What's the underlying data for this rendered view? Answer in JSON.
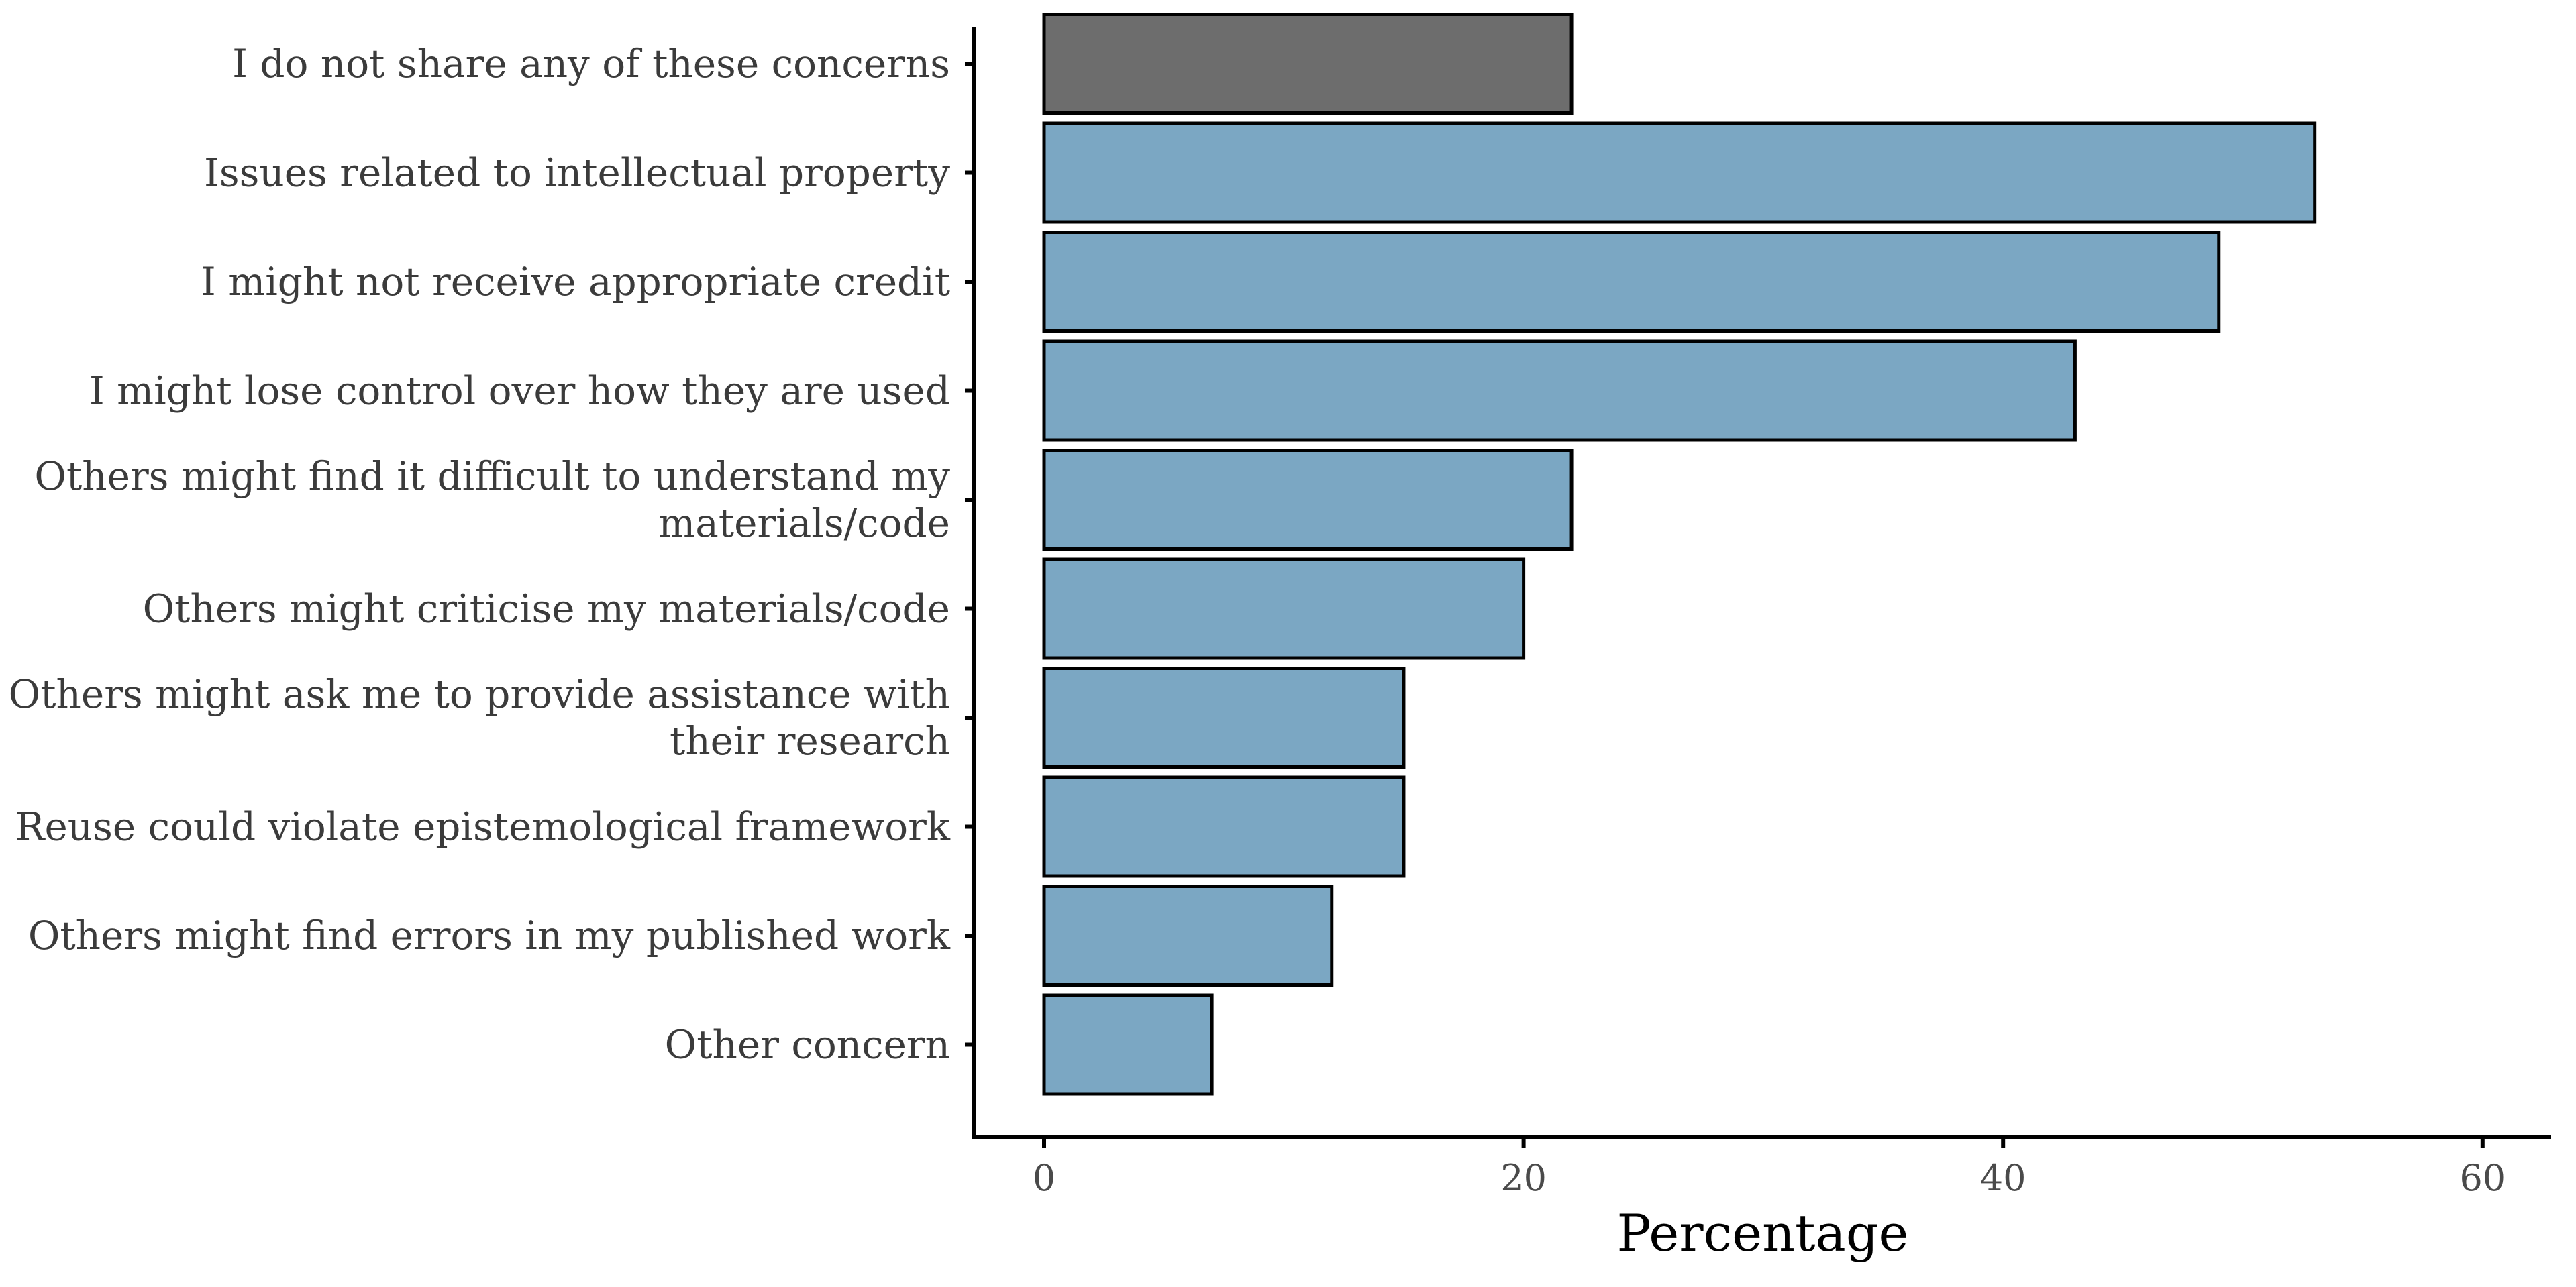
{
  "chart_data": {
    "type": "bar",
    "orientation": "horizontal",
    "title": "",
    "xlabel": "Percentage",
    "ylabel": "",
    "xlim": [
      -3,
      63
    ],
    "xticks": [
      0,
      20,
      40,
      60
    ],
    "grid": false,
    "legend": "none",
    "categories": [
      "I do not share any of these concerns",
      "Issues related to intellectual property",
      "I might not receive appropriate credit",
      "I might lose control over how they are used",
      "Others might find it difficult to understand my materials/code",
      "Others might criticise my materials/code",
      "Others might ask me to provide assistance with their research",
      "Reuse could violate epistemological framework",
      "Others might find errors in my published work",
      "Other concern"
    ],
    "category_lines": [
      [
        "I do not share any of these concerns"
      ],
      [
        "Issues related to intellectual property"
      ],
      [
        "I might not receive appropriate credit"
      ],
      [
        "I might lose control over how they are used"
      ],
      [
        "Others might find it difficult to understand my",
        "materials/code"
      ],
      [
        "Others might criticise my materials/code"
      ],
      [
        "Others might ask me to provide assistance with",
        "their research"
      ],
      [
        "Reuse could violate epistemological framework"
      ],
      [
        "Others might find errors in my published work"
      ],
      [
        "Other concern"
      ]
    ],
    "values": [
      22,
      53,
      49,
      43,
      22,
      20,
      15,
      15,
      12,
      7
    ],
    "bar_colors": [
      "#6d6d6d",
      "#7ba7c3",
      "#7ba7c3",
      "#7ba7c3",
      "#7ba7c3",
      "#7ba7c3",
      "#7ba7c3",
      "#7ba7c3",
      "#7ba7c3",
      "#7ba7c3"
    ]
  }
}
